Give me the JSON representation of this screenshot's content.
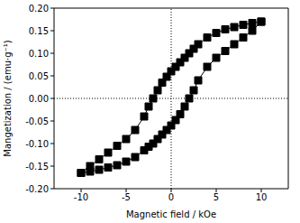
{
  "chart_data": {
    "type": "scatter",
    "xlabel": "Magnetic field / kOe",
    "ylabel": "Mangetization / (emu·g⁻¹)",
    "xlim": [
      -13,
      13
    ],
    "ylim": [
      -0.2,
      0.2
    ],
    "xticks": [
      -10,
      -5,
      0,
      5,
      10
    ],
    "yticks": [
      {
        "value": -0.2,
        "label": "-0.20"
      },
      -0.15,
      {
        "value": -0.1,
        "label": "-0.10"
      },
      -0.05,
      {
        "value": 0,
        "label": "0.00"
      },
      0.05,
      {
        "value": 0.1,
        "label": "0.10"
      },
      0.15,
      {
        "value": 0.2,
        "label": "0.20"
      }
    ],
    "grid": false,
    "series": [
      {
        "color": "#000000",
        "marker": "square",
        "line_style": "solid",
        "x": [
          10,
          9,
          8,
          7,
          6,
          5,
          4,
          3,
          2.5,
          2,
          1.5,
          1,
          0.5,
          0,
          -0.5,
          -1,
          -1.5,
          -2,
          -2.5,
          -3,
          -4,
          -5,
          -6,
          -7,
          -8,
          -9,
          -10
        ],
        "values": [
          0.17,
          0.167,
          0.163,
          0.158,
          0.153,
          0.145,
          0.135,
          0.12,
          0.11,
          0.1,
          0.09,
          0.08,
          0.07,
          0.06,
          0.048,
          0.035,
          0.018,
          0.0,
          -0.018,
          -0.04,
          -0.07,
          -0.09,
          -0.105,
          -0.12,
          -0.135,
          -0.15,
          -0.165
        ]
      },
      {
        "color": "#000000",
        "marker": "square",
        "line_style": "solid",
        "x": [
          -10,
          -9,
          -8,
          -7,
          -6,
          -5,
          -4,
          -3,
          -2.5,
          -2,
          -1.5,
          -1,
          -0.5,
          0,
          0.5,
          1,
          1.5,
          2,
          2.5,
          3,
          4,
          5,
          6,
          7,
          8,
          9,
          10
        ],
        "values": [
          -0.165,
          -0.162,
          -0.158,
          -0.153,
          -0.148,
          -0.14,
          -0.13,
          -0.115,
          -0.107,
          -0.1,
          -0.09,
          -0.08,
          -0.07,
          -0.06,
          -0.048,
          -0.035,
          -0.018,
          0.0,
          0.018,
          0.04,
          0.07,
          0.09,
          0.105,
          0.12,
          0.135,
          0.15,
          0.17
        ]
      }
    ]
  }
}
